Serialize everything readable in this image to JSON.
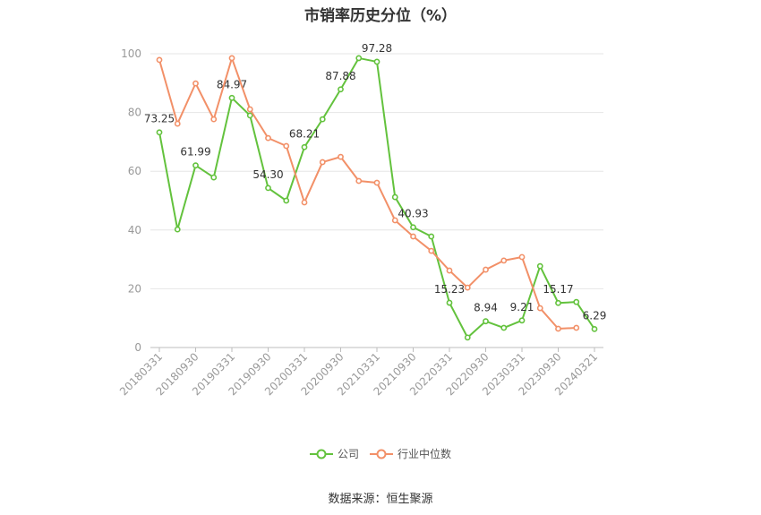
{
  "chart_data": {
    "type": "line",
    "title": "市销率历史分位（%）",
    "categories": [
      "20180331",
      "",
      "20180930",
      "",
      "20190331",
      "",
      "20190930",
      "",
      "20200331",
      "",
      "20200930",
      "",
      "20210331",
      "",
      "20210930",
      "",
      "20220331",
      "",
      "20220930",
      "",
      "20230331",
      "",
      "20230930",
      "",
      "20240321"
    ],
    "ylim": [
      0,
      100
    ],
    "yticks": [
      0,
      20,
      40,
      60,
      80,
      100
    ],
    "grid": true,
    "legend_position": "bottom",
    "series": [
      {
        "name": "公司",
        "color": "#63c23d",
        "values": [
          73.25,
          40.2,
          61.99,
          57.9,
          84.97,
          79.0,
          54.3,
          50.0,
          68.21,
          77.7,
          87.88,
          98.5,
          97.28,
          51.2,
          40.93,
          37.8,
          15.23,
          3.4,
          8.94,
          6.7,
          9.21,
          27.7,
          15.17,
          15.5,
          6.29
        ],
        "data_labels": [
          "73.25",
          "",
          "61.99",
          "",
          "84.97",
          "",
          "54.30",
          "",
          "68.21",
          "",
          "87.88",
          "",
          "97.28",
          "",
          "40.93",
          "",
          "15.23",
          "",
          "8.94",
          "",
          "9.21",
          "",
          "15.17",
          "",
          "6.29"
        ]
      },
      {
        "name": "行业中位数",
        "color": "#f29068",
        "values": [
          97.9,
          76.2,
          89.9,
          77.7,
          98.5,
          81.1,
          71.3,
          68.6,
          49.4,
          63.1,
          64.9,
          56.7,
          56.1,
          43.3,
          37.8,
          32.9,
          26.2,
          20.4,
          26.5,
          29.6,
          30.8,
          13.4,
          6.4,
          6.7,
          null
        ]
      }
    ]
  },
  "source": "数据来源：恒生聚源"
}
